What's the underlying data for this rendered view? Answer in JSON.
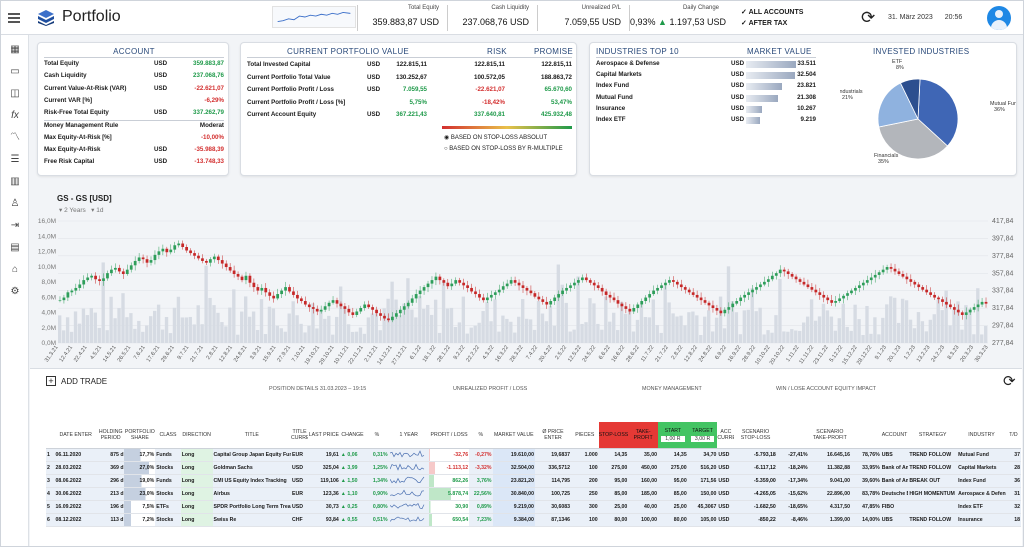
{
  "header": {
    "title": "Portfolio",
    "kpis": [
      {
        "label": "Total Equity",
        "value": "359.883,87 USD"
      },
      {
        "label": "Cash Liquidity",
        "value": "237.068,76 USD"
      },
      {
        "label": "Unrealized P/L",
        "value": "7.059,55 USD"
      },
      {
        "label": "Daily Change",
        "pct": "0,93%",
        "value": "1.197,53 USD"
      }
    ],
    "options": [
      "ALL ACCOUNTS",
      "AFTER TAX"
    ],
    "date": "31. März 2023",
    "time": "20:56"
  },
  "account": {
    "title": "ACCOUNT",
    "rows": [
      {
        "label": "Total Equity",
        "cur": "USD",
        "value": "359.883,87"
      },
      {
        "label": "Cash Liquidity",
        "cur": "USD",
        "value": "237.068,76"
      },
      {
        "label": "Current Value-At-Risk (VAR)",
        "cur": "USD",
        "value": "-22.621,07"
      },
      {
        "label": "Current VAR [%]",
        "cur": "",
        "value": "-6,29%"
      },
      {
        "label": "Risk-Free Total Equity",
        "cur": "USD",
        "value": "337.262,79"
      },
      {
        "label": "Money Management Rule",
        "cur": "",
        "value": "Moderat"
      },
      {
        "label": "Max Equity-At-Risk [%]",
        "cur": "",
        "value": "-10,00%"
      },
      {
        "label": "Max Equity-At-Risk",
        "cur": "USD",
        "value": "-35.988,39"
      },
      {
        "label": "Free Risk Capital",
        "cur": "USD",
        "value": "-13.748,33"
      }
    ]
  },
  "portfolio": {
    "title": "CURRENT PORTFOLIO VALUE",
    "risk": "RISK",
    "promise": "PROMISE",
    "rows": [
      {
        "label": "Total Invested Capital",
        "cur": "USD",
        "v": "122.815,11",
        "r": "122.815,11",
        "p": "122.815,11"
      },
      {
        "label": "Current Portfolio Total Value",
        "cur": "USD",
        "v": "130.252,67",
        "r": "100.572,05",
        "p": "188.863,72"
      },
      {
        "label": "Current Portfolio Profit / Loss",
        "cur": "USD",
        "v": "7.059,55",
        "r": "-22.621,07",
        "p": "65.670,60"
      },
      {
        "label": "Current Portfolio Profit / Loss [%]",
        "cur": "",
        "v": "5,75%",
        "r": "-18,42%",
        "p": "53,47%"
      },
      {
        "label": "Current Account Equity",
        "cur": "USD",
        "v": "367.221,43",
        "r": "337.640,81",
        "p": "425.932,48"
      }
    ],
    "radios": [
      "BASED ON STOP-LOSS ABSOLUT",
      "BASED ON STOP-LOSS BY R-MULTIPLE"
    ]
  },
  "industries": {
    "title": "INDUSTRIES TOP 10",
    "mv": "MARKET VALUE",
    "rows": [
      {
        "name": "Aerospace & Defense",
        "cur": "USD",
        "value": "33.511",
        "frac": 1.0
      },
      {
        "name": "Capital Markets",
        "cur": "USD",
        "value": "32.504",
        "frac": 0.97
      },
      {
        "name": "Index Fund",
        "cur": "USD",
        "value": "23.821",
        "frac": 0.71
      },
      {
        "name": "Mutual Fund",
        "cur": "USD",
        "value": "21.308",
        "frac": 0.64
      },
      {
        "name": "Insurance",
        "cur": "USD",
        "value": "10.267",
        "frac": 0.31
      },
      {
        "name": "Index ETF",
        "cur": "USD",
        "value": "9.219",
        "frac": 0.28
      }
    ]
  },
  "pie": {
    "title": "INVESTED INDUSTRIES",
    "slices": [
      {
        "name": "Mutual Fund",
        "pct": "36%",
        "value": 36,
        "color": "#3f66b5"
      },
      {
        "name": "Financials",
        "pct": "35%",
        "value": 35,
        "color": "#b3b6bb"
      },
      {
        "name": "Industrials",
        "pct": "21%",
        "value": 21,
        "color": "#8fb2df"
      },
      {
        "name": "ETF",
        "pct": "8%",
        "value": 8,
        "color": "#2c4f8f"
      }
    ]
  },
  "chart_data": {
    "type": "line",
    "title": "GS - GS [USD]",
    "range": "2 Years",
    "interval": "1d",
    "yticks_right": [
      "417,84",
      "397,84",
      "377,84",
      "357,84",
      "337,84",
      "317,84",
      "297,84",
      "277,84"
    ],
    "yticks_left": [
      "16,0M",
      "14,0M",
      "12,0M",
      "10,0M",
      "8,0M",
      "6,0M",
      "4,0M",
      "2,0M",
      "0,0M"
    ],
    "ylim": [
      277.84,
      417.84
    ],
    "xticks": [
      "31.3.21",
      "12.4.21",
      "22.4.21",
      "4.5.21",
      "14.5.21",
      "26.5.21",
      "7.6.21",
      "17.6.21",
      "29.6.21",
      "9.7.21",
      "21.7.21",
      "2.8.21",
      "12.8.21",
      "24.8.21",
      "3.9.21",
      "15.9.21",
      "27.9.21",
      "7.10.21",
      "19.10.21",
      "29.10.21",
      "10.11.21",
      "22.11.21",
      "2.12.21",
      "14.12.21",
      "27.12.21",
      "6.1.22",
      "18.1.22",
      "28.1.22",
      "9.2.22",
      "22.2.22",
      "4.3.22",
      "16.3.22",
      "28.3.22",
      "7.4.22",
      "20.4.22",
      "2.5.22",
      "12.5.22",
      "24.5.22",
      "6.6.22",
      "16.6.22",
      "28.6.22",
      "11.7.22",
      "21.7.22",
      "2.8.22",
      "12.8.22",
      "24.8.22",
      "6.9.22",
      "16.9.22",
      "28.9.22",
      "10.10.22",
      "20.10.22",
      "1.11.22",
      "11.11.22",
      "23.11.22",
      "5.12.22",
      "15.12.22",
      "28.12.22",
      "9.1.23",
      "20.1.23",
      "1.2.23",
      "13.2.23",
      "24.2.23",
      "8.3.23",
      "20.3.23",
      "30.3.23"
    ],
    "closes": [
      327,
      330,
      336,
      338,
      341,
      345,
      350,
      353,
      355,
      351,
      349,
      352,
      358,
      362,
      364,
      360,
      357,
      362,
      367,
      372,
      376,
      374,
      370,
      373,
      379,
      383,
      386,
      382,
      385,
      390,
      392,
      388,
      384,
      381,
      378,
      375,
      372,
      370,
      374,
      377,
      373,
      369,
      365,
      361,
      357,
      354,
      350,
      355,
      347,
      342,
      338,
      341,
      336,
      332,
      329,
      334,
      338,
      342,
      337,
      333,
      329,
      326,
      322,
      319,
      317,
      314,
      316,
      320,
      324,
      327,
      323,
      320,
      317,
      313,
      310,
      314,
      318,
      322,
      319,
      316,
      312,
      309,
      306,
      304,
      308,
      312,
      316,
      320,
      324,
      329,
      334,
      338,
      342,
      346,
      350,
      354,
      350,
      347,
      343,
      346,
      350,
      347,
      344,
      341,
      337,
      334,
      330,
      327,
      330,
      333,
      336,
      339,
      343,
      346,
      350,
      347,
      344,
      341,
      338,
      335,
      331,
      328,
      325,
      322,
      326,
      330,
      334,
      338,
      341,
      344,
      347,
      350,
      353,
      350,
      347,
      344,
      341,
      337,
      333,
      330,
      327,
      323,
      320,
      317,
      314,
      318,
      322,
      326,
      330,
      334,
      338,
      341,
      344,
      347,
      350,
      348,
      345,
      342,
      339,
      336,
      333,
      330,
      327,
      324,
      321,
      318,
      315,
      312,
      316,
      319,
      323,
      326,
      330,
      333,
      336,
      339,
      342,
      345,
      348,
      351,
      355,
      358,
      362,
      360,
      357,
      354,
      351,
      348,
      345,
      342,
      339,
      336,
      333,
      330,
      327,
      324,
      326,
      329,
      332,
      335,
      338,
      341,
      344,
      347,
      350,
      353,
      356,
      359,
      362,
      365,
      363,
      360,
      357,
      354,
      351,
      348,
      345,
      342,
      339,
      336,
      333,
      330,
      328,
      325,
      322,
      319,
      316,
      313,
      310,
      313,
      316,
      319,
      322,
      325,
      323
    ]
  },
  "table": {
    "add": "ADD TRADE",
    "sections": {
      "position": "POSITION DETAILS   31.03.2023 – 19:15",
      "upl": "UNREALIZED PROFIT / LOSS",
      "mm": "MONEY MANAGEMENT",
      "win": "WIN / LOSE ACCOUNT EQUITY IMPACT"
    },
    "headers": [
      "DATE ENTER",
      "HOLDING PERIOD",
      "PORTFOLIO SHARE",
      "CLASS",
      "DIRECTION",
      "TITLE",
      "TITLE CURRENCY",
      "LAST PRICE",
      "CHANGE",
      "%",
      "1 YEAR",
      "PROFIT / LOSS",
      "%",
      "MARKET VALUE",
      "Ø PRICE ENTER",
      "PIECES",
      "STOP-LOSS",
      "TAKE-PROFIT",
      "START",
      "TARGET",
      "ACC CURRENCY",
      "SCENARIO STOP-LOSS",
      "",
      "SCENARIO TAKE-PROFIT",
      "",
      "ACCOUNT",
      "STRATEGY",
      "INDUSTRY",
      "T/D"
    ],
    "mm_sub": {
      "start": "1,00 R",
      "target": "3,00 R"
    },
    "rows": [
      {
        "n": "1",
        "date": "06.11.2020",
        "hold": "875 d",
        "share": "17,7%",
        "sharef": 0.177,
        "cls": "Funds",
        "dir": "Long",
        "title": "Capital Group Japan Equity Fund",
        "cur": "EUR",
        "last": "19,61",
        "chg": "0,06",
        "pct": "0,31%",
        "pl": "-32,76",
        "plp": "-0,27%",
        "plf": 0.03,
        "mv": "19.610,00",
        "avg": "19,6837",
        "pcs": "1.000",
        "sl": "14,35",
        "tp": "35,00",
        "st": "14,35",
        "tg": "34,70",
        "acc": "USD",
        "ssl": "-5.793,18",
        "sslp": "-27,41%",
        "stp": "16.645,16",
        "stpp": "78,76%",
        "account": "UBS",
        "strategy": "TREND FOLLOW",
        "industry": "Mutual Fund",
        "td": "37"
      },
      {
        "n": "2",
        "date": "28.03.2022",
        "hold": "369 d",
        "share": "27,0%",
        "sharef": 0.27,
        "cls": "Stocks",
        "dir": "Long",
        "title": "Goldman Sachs",
        "cur": "USD",
        "last": "325,04",
        "chg": "3,99",
        "pct": "1,25%",
        "pl": "-1.113,12",
        "plp": "-3,32%",
        "plf": 0.15,
        "mv": "32.504,00",
        "avg": "336,5712",
        "pcs": "100",
        "sl": "275,00",
        "tp": "450,00",
        "st": "275,00",
        "tg": "516,20",
        "acc": "USD",
        "ssl": "-6.117,12",
        "sslp": "-18,24%",
        "stp": "11.382,88",
        "stpp": "33,95%",
        "account": "Bank of America",
        "strategy": "TREND FOLLOW",
        "industry": "Capital Markets",
        "td": "28"
      },
      {
        "n": "3",
        "date": "08.06.2022",
        "hold": "296 d",
        "share": "19,0%",
        "sharef": 0.19,
        "cls": "Funds",
        "dir": "Long",
        "title": "CMI US Equity Index Tracking",
        "cur": "USD",
        "last": "119,106",
        "chg": "1,50",
        "pct": "1,34%",
        "pl": "862,26",
        "plp": "3,76%",
        "plf": 0.12,
        "mv": "23.821,20",
        "avg": "114,795",
        "pcs": "200",
        "sl": "95,00",
        "tp": "160,00",
        "st": "95,00",
        "tg": "171,56",
        "acc": "USD",
        "ssl": "-5.359,00",
        "sslp": "-17,34%",
        "stp": "9.041,00",
        "stpp": "39,60%",
        "account": "Bank of America",
        "strategy": "BREAK OUT",
        "industry": "Index Fund",
        "td": "36"
      },
      {
        "n": "4",
        "date": "30.06.2022",
        "hold": "213 d",
        "share": "23,0%",
        "sharef": 0.23,
        "cls": "Stocks",
        "dir": "Long",
        "title": "Airbus",
        "cur": "EUR",
        "last": "123,36",
        "chg": "1,10",
        "pct": "0,90%",
        "pl": "5.878,74",
        "plp": "22,56%",
        "plf": 0.55,
        "mv": "30.840,00",
        "avg": "100,725",
        "pcs": "250",
        "sl": "85,00",
        "tp": "185,00",
        "st": "85,00",
        "tg": "150,00",
        "acc": "USD",
        "ssl": "-4.265,05",
        "sslp": "-15,62%",
        "stp": "22.896,00",
        "stpp": "83,78%",
        "account": "Deutsche Bank",
        "strategy": "HIGH MOMENTUM",
        "industry": "Aerospace & Defense",
        "td": "31"
      },
      {
        "n": "5",
        "date": "16.09.2022",
        "hold": "196 d",
        "share": "7,5%",
        "sharef": 0.075,
        "cls": "ETFs",
        "dir": "Long",
        "title": "SPDR Portfolio Long Term Treas.",
        "cur": "USD",
        "last": "30,73",
        "chg": "0,25",
        "pct": "0,80%",
        "pl": "30,90",
        "plp": "0,89%",
        "plf": 0.04,
        "mv": "9.219,00",
        "avg": "30,6083",
        "pcs": "300",
        "sl": "25,00",
        "tp": "40,00",
        "st": "25,00",
        "tg": "45,3067",
        "acc": "USD",
        "ssl": "-1.682,50",
        "sslp": "-18,65%",
        "stp": "4.317,50",
        "stpp": "47,85%",
        "account": "FIBO",
        "strategy": "",
        "industry": "Index ETF",
        "td": "32"
      },
      {
        "n": "6",
        "date": "08.12.2022",
        "hold": "113 d",
        "share": "7,2%",
        "sharef": 0.072,
        "cls": "Stocks",
        "dir": "Long",
        "title": "Swiss Re",
        "cur": "CHF",
        "last": "93,84",
        "chg": "0,55",
        "pct": "0,51%",
        "pl": "650,54",
        "plp": "7,23%",
        "plf": 0.08,
        "mv": "9.384,00",
        "avg": "87,1346",
        "pcs": "100",
        "sl": "80,00",
        "tp": "100,00",
        "st": "80,00",
        "tg": "105,00",
        "acc": "USD",
        "ssl": "-850,22",
        "sslp": "-8,46%",
        "stp": "1.399,00",
        "stpp": "14,00%",
        "account": "UBS",
        "strategy": "TREND FOLLOW",
        "industry": "Insurance",
        "td": "18"
      }
    ]
  }
}
